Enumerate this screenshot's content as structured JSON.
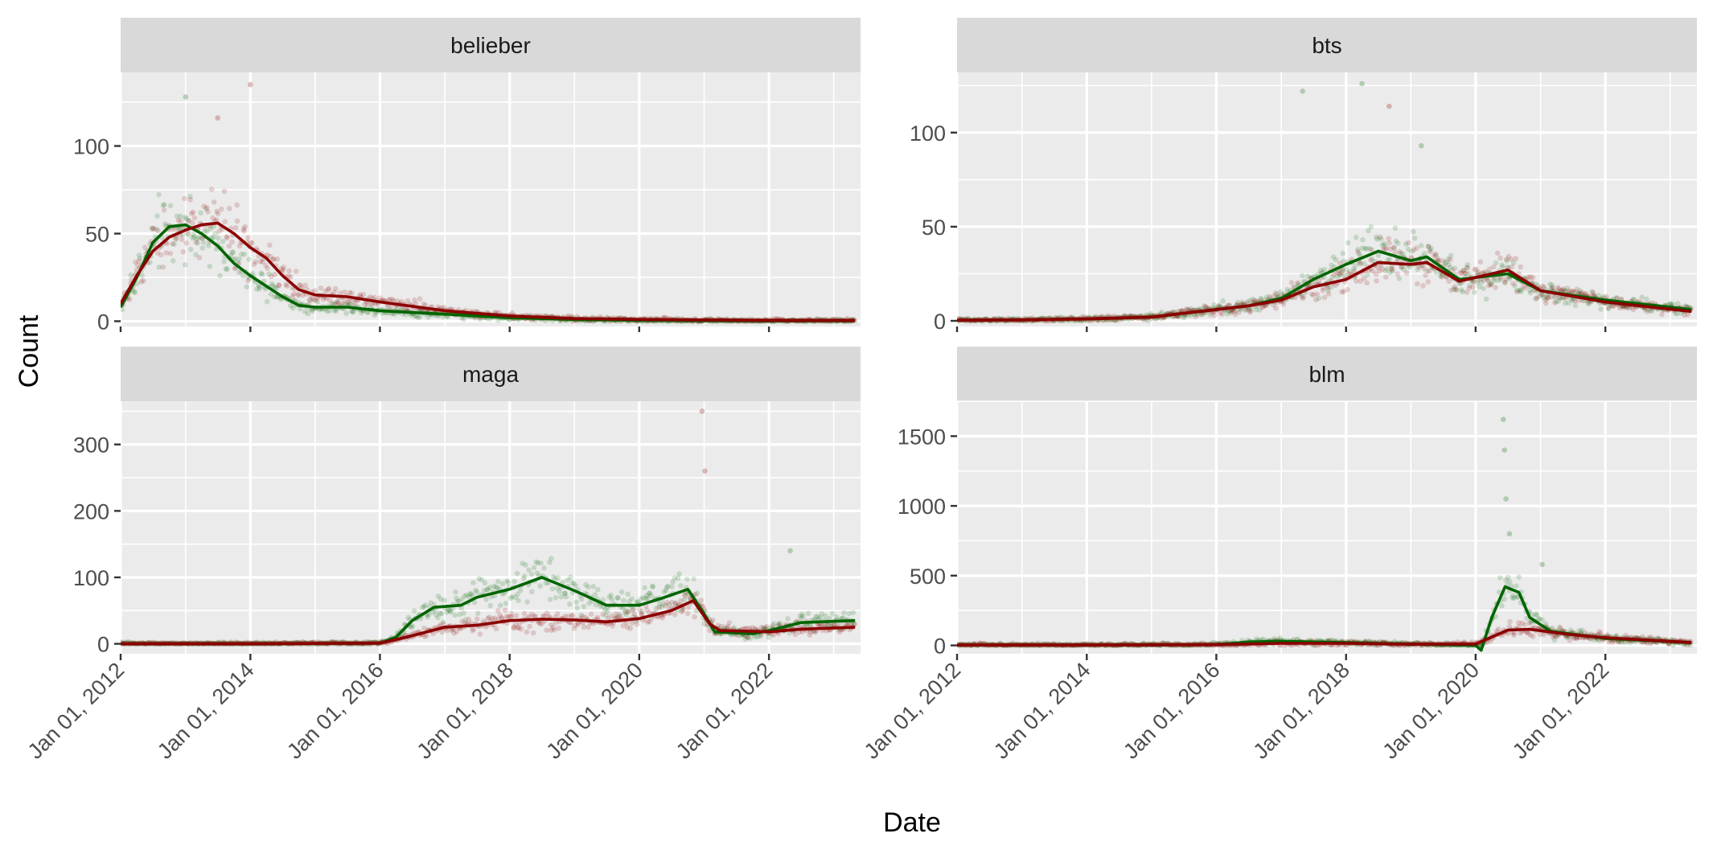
{
  "figure": {
    "xlabel": "Date",
    "ylabel": "Count",
    "panel_background": "#ebebeb",
    "strip_background": "#d9d9d9",
    "grid_color": "#ffffff",
    "series_colors": [
      "#006400",
      "#8b0000"
    ]
  },
  "chart_data": [
    {
      "type": "scatter",
      "title": "belieber",
      "x_ticks": [
        "2012-01-01",
        "2014-01-01",
        "2016-01-01",
        "2018-01-01",
        "2020-01-01",
        "2022-01-01"
      ],
      "x_tick_labels": [
        "Jan 01, 2012",
        "Jan 01, 2014",
        "Jan 01, 2016",
        "Jan 01, 2018",
        "Jan 01, 2020",
        "Jan 01, 2022"
      ],
      "xlim": [
        "2012-01-01",
        "2023-06-01"
      ],
      "y_ticks": [
        0,
        50,
        100
      ],
      "ylim": [
        -3,
        142
      ],
      "grid": true,
      "series": [
        {
          "color": "#006400",
          "smooth": [
            {
              "x": "2012-01-01",
              "y": 8
            },
            {
              "x": "2012-04-01",
              "y": 25
            },
            {
              "x": "2012-07-01",
              "y": 45
            },
            {
              "x": "2012-10-01",
              "y": 54
            },
            {
              "x": "2013-01-01",
              "y": 55
            },
            {
              "x": "2013-04-01",
              "y": 50
            },
            {
              "x": "2013-07-01",
              "y": 43
            },
            {
              "x": "2013-10-01",
              "y": 33
            },
            {
              "x": "2014-01-01",
              "y": 26
            },
            {
              "x": "2014-04-01",
              "y": 20
            },
            {
              "x": "2014-07-01",
              "y": 14
            },
            {
              "x": "2014-10-01",
              "y": 9
            },
            {
              "x": "2015-01-01",
              "y": 8
            },
            {
              "x": "2015-07-01",
              "y": 8
            },
            {
              "x": "2016-01-01",
              "y": 6
            },
            {
              "x": "2017-01-01",
              "y": 4
            },
            {
              "x": "2018-01-01",
              "y": 2
            },
            {
              "x": "2019-01-01",
              "y": 1
            },
            {
              "x": "2020-01-01",
              "y": 0.5
            },
            {
              "x": "2021-01-01",
              "y": 0.3
            },
            {
              "x": "2022-01-01",
              "y": 0.2
            },
            {
              "x": "2023-05-01",
              "y": 0.2
            }
          ]
        },
        {
          "color": "#8b0000",
          "smooth": [
            {
              "x": "2012-01-01",
              "y": 10
            },
            {
              "x": "2012-04-01",
              "y": 26
            },
            {
              "x": "2012-07-01",
              "y": 40
            },
            {
              "x": "2012-10-01",
              "y": 48
            },
            {
              "x": "2013-01-01",
              "y": 52
            },
            {
              "x": "2013-04-01",
              "y": 55
            },
            {
              "x": "2013-07-01",
              "y": 56
            },
            {
              "x": "2013-10-01",
              "y": 50
            },
            {
              "x": "2014-01-01",
              "y": 42
            },
            {
              "x": "2014-04-01",
              "y": 36
            },
            {
              "x": "2014-07-01",
              "y": 26
            },
            {
              "x": "2014-10-01",
              "y": 18
            },
            {
              "x": "2015-01-01",
              "y": 15
            },
            {
              "x": "2015-07-01",
              "y": 14
            },
            {
              "x": "2016-01-01",
              "y": 11
            },
            {
              "x": "2017-01-01",
              "y": 6
            },
            {
              "x": "2018-01-01",
              "y": 3
            },
            {
              "x": "2019-01-01",
              "y": 1.5
            },
            {
              "x": "2020-01-01",
              "y": 1
            },
            {
              "x": "2021-01-01",
              "y": 0.7
            },
            {
              "x": "2022-01-01",
              "y": 0.5
            },
            {
              "x": "2023-05-01",
              "y": 0.4
            }
          ]
        }
      ],
      "peaks": [
        {
          "x": "2014-01-01",
          "y": 135,
          "color": "#8b0000"
        },
        {
          "x": "2013-01-01",
          "y": 128,
          "color": "#006400"
        },
        {
          "x": "2013-07-01",
          "y": 116,
          "color": "#8b0000"
        }
      ]
    },
    {
      "type": "scatter",
      "title": "bts",
      "x_ticks": [
        "2012-01-01",
        "2014-01-01",
        "2016-01-01",
        "2018-01-01",
        "2020-01-01",
        "2022-01-01"
      ],
      "x_tick_labels": [
        "Jan 01, 2012",
        "Jan 01, 2014",
        "Jan 01, 2016",
        "Jan 01, 2018",
        "Jan 01, 2020",
        "Jan 01, 2022"
      ],
      "xlim": [
        "2012-01-01",
        "2023-06-01"
      ],
      "y_ticks": [
        0,
        50,
        100
      ],
      "ylim": [
        -3,
        132
      ],
      "grid": true,
      "series": [
        {
          "color": "#006400",
          "smooth": [
            {
              "x": "2012-01-01",
              "y": 0.3
            },
            {
              "x": "2013-01-01",
              "y": 0.5
            },
            {
              "x": "2014-01-01",
              "y": 1
            },
            {
              "x": "2015-01-01",
              "y": 2
            },
            {
              "x": "2015-07-01",
              "y": 4
            },
            {
              "x": "2016-01-01",
              "y": 6
            },
            {
              "x": "2016-07-01",
              "y": 8
            },
            {
              "x": "2017-01-01",
              "y": 12
            },
            {
              "x": "2017-07-01",
              "y": 22
            },
            {
              "x": "2018-01-01",
              "y": 30
            },
            {
              "x": "2018-07-01",
              "y": 37
            },
            {
              "x": "2019-01-01",
              "y": 32
            },
            {
              "x": "2019-04-01",
              "y": 34
            },
            {
              "x": "2019-10-01",
              "y": 22
            },
            {
              "x": "2020-07-01",
              "y": 25
            },
            {
              "x": "2021-01-01",
              "y": 16
            },
            {
              "x": "2022-01-01",
              "y": 11
            },
            {
              "x": "2023-05-01",
              "y": 6
            }
          ]
        },
        {
          "color": "#8b0000",
          "smooth": [
            {
              "x": "2012-01-01",
              "y": 0.3
            },
            {
              "x": "2013-01-01",
              "y": 0.5
            },
            {
              "x": "2014-01-01",
              "y": 1
            },
            {
              "x": "2015-01-01",
              "y": 2
            },
            {
              "x": "2015-07-01",
              "y": 4
            },
            {
              "x": "2016-01-01",
              "y": 6
            },
            {
              "x": "2016-07-01",
              "y": 8
            },
            {
              "x": "2017-01-01",
              "y": 11
            },
            {
              "x": "2017-07-01",
              "y": 18
            },
            {
              "x": "2018-01-01",
              "y": 22
            },
            {
              "x": "2018-07-01",
              "y": 31
            },
            {
              "x": "2019-01-01",
              "y": 30
            },
            {
              "x": "2019-04-01",
              "y": 31
            },
            {
              "x": "2019-10-01",
              "y": 21
            },
            {
              "x": "2020-07-01",
              "y": 27
            },
            {
              "x": "2021-01-01",
              "y": 16
            },
            {
              "x": "2022-01-01",
              "y": 10
            },
            {
              "x": "2023-05-01",
              "y": 5
            }
          ]
        }
      ],
      "peaks": [
        {
          "x": "2018-04-01",
          "y": 126,
          "color": "#006400"
        },
        {
          "x": "2017-05-01",
          "y": 122,
          "color": "#006400"
        },
        {
          "x": "2018-09-01",
          "y": 114,
          "color": "#8b0000"
        },
        {
          "x": "2019-03-01",
          "y": 93,
          "color": "#006400"
        }
      ]
    },
    {
      "type": "scatter",
      "title": "maga",
      "x_ticks": [
        "2012-01-01",
        "2014-01-01",
        "2016-01-01",
        "2018-01-01",
        "2020-01-01",
        "2022-01-01"
      ],
      "x_tick_labels": [
        "Jan 01, 2012",
        "Jan 01, 2014",
        "Jan 01, 2016",
        "Jan 01, 2018",
        "Jan 01, 2020",
        "Jan 01, 2022"
      ],
      "xlim": [
        "2012-01-01",
        "2023-06-01"
      ],
      "y_ticks": [
        0,
        100,
        200,
        300
      ],
      "ylim": [
        -15,
        365
      ],
      "grid": true,
      "series": [
        {
          "color": "#006400",
          "smooth": [
            {
              "x": "2012-01-01",
              "y": 0
            },
            {
              "x": "2014-01-01",
              "y": 0
            },
            {
              "x": "2016-01-01",
              "y": 1
            },
            {
              "x": "2016-04-01",
              "y": 10
            },
            {
              "x": "2016-07-01",
              "y": 35
            },
            {
              "x": "2016-11-01",
              "y": 55
            },
            {
              "x": "2017-04-01",
              "y": 58
            },
            {
              "x": "2017-07-01",
              "y": 70
            },
            {
              "x": "2018-01-01",
              "y": 82
            },
            {
              "x": "2018-07-01",
              "y": 100
            },
            {
              "x": "2019-01-01",
              "y": 80
            },
            {
              "x": "2019-07-01",
              "y": 58
            },
            {
              "x": "2020-01-01",
              "y": 58
            },
            {
              "x": "2020-05-01",
              "y": 68
            },
            {
              "x": "2020-10-01",
              "y": 82
            },
            {
              "x": "2021-01-01",
              "y": 45
            },
            {
              "x": "2021-03-01",
              "y": 18
            },
            {
              "x": "2021-10-01",
              "y": 15
            },
            {
              "x": "2022-01-01",
              "y": 20
            },
            {
              "x": "2022-07-01",
              "y": 32
            },
            {
              "x": "2023-05-01",
              "y": 35
            }
          ]
        },
        {
          "color": "#8b0000",
          "smooth": [
            {
              "x": "2012-01-01",
              "y": 0
            },
            {
              "x": "2014-01-01",
              "y": 0
            },
            {
              "x": "2016-01-01",
              "y": 1
            },
            {
              "x": "2016-06-01",
              "y": 10
            },
            {
              "x": "2017-01-01",
              "y": 25
            },
            {
              "x": "2017-07-01",
              "y": 28
            },
            {
              "x": "2018-01-01",
              "y": 35
            },
            {
              "x": "2018-07-01",
              "y": 37
            },
            {
              "x": "2019-01-01",
              "y": 36
            },
            {
              "x": "2019-07-01",
              "y": 33
            },
            {
              "x": "2020-01-01",
              "y": 38
            },
            {
              "x": "2020-07-01",
              "y": 50
            },
            {
              "x": "2020-11-01",
              "y": 65
            },
            {
              "x": "2021-02-01",
              "y": 30
            },
            {
              "x": "2021-04-01",
              "y": 20
            },
            {
              "x": "2022-01-01",
              "y": 18
            },
            {
              "x": "2022-07-01",
              "y": 22
            },
            {
              "x": "2023-05-01",
              "y": 25
            }
          ]
        }
      ],
      "peaks": [
        {
          "x": "2020-12-20",
          "y": 350,
          "color": "#8b0000"
        },
        {
          "x": "2021-01-05",
          "y": 260,
          "color": "#8b0000"
        },
        {
          "x": "2022-05-01",
          "y": 140,
          "color": "#006400"
        }
      ]
    },
    {
      "type": "scatter",
      "title": "blm",
      "x_ticks": [
        "2012-01-01",
        "2014-01-01",
        "2016-01-01",
        "2018-01-01",
        "2020-01-01",
        "2022-01-01"
      ],
      "x_tick_labels": [
        "Jan 01, 2012",
        "Jan 01, 2014",
        "Jan 01, 2016",
        "Jan 01, 2018",
        "Jan 01, 2020",
        "Jan 01, 2022"
      ],
      "xlim": [
        "2012-01-01",
        "2023-06-01"
      ],
      "y_ticks": [
        0,
        500,
        1000,
        1500
      ],
      "ylim": [
        -60,
        1750
      ],
      "grid": true,
      "series": [
        {
          "color": "#006400",
          "smooth": [
            {
              "x": "2012-01-01",
              "y": 2
            },
            {
              "x": "2014-01-01",
              "y": 2
            },
            {
              "x": "2016-01-01",
              "y": 5
            },
            {
              "x": "2016-07-01",
              "y": 25
            },
            {
              "x": "2017-01-01",
              "y": 30
            },
            {
              "x": "2018-01-01",
              "y": 20
            },
            {
              "x": "2019-01-01",
              "y": 10
            },
            {
              "x": "2020-01-01",
              "y": 0
            },
            {
              "x": "2020-02-01",
              "y": -35
            },
            {
              "x": "2020-04-01",
              "y": 200
            },
            {
              "x": "2020-06-15",
              "y": 420
            },
            {
              "x": "2020-09-01",
              "y": 380
            },
            {
              "x": "2020-11-01",
              "y": 200
            },
            {
              "x": "2021-03-01",
              "y": 100
            },
            {
              "x": "2022-01-01",
              "y": 50
            },
            {
              "x": "2023-05-01",
              "y": 20
            }
          ]
        },
        {
          "color": "#8b0000",
          "smooth": [
            {
              "x": "2012-01-01",
              "y": 2
            },
            {
              "x": "2014-01-01",
              "y": 2
            },
            {
              "x": "2016-01-01",
              "y": 5
            },
            {
              "x": "2017-01-01",
              "y": 15
            },
            {
              "x": "2018-01-01",
              "y": 15
            },
            {
              "x": "2019-01-01",
              "y": 8
            },
            {
              "x": "2020-01-01",
              "y": 10
            },
            {
              "x": "2020-04-01",
              "y": 60
            },
            {
              "x": "2020-07-01",
              "y": 110
            },
            {
              "x": "2020-11-01",
              "y": 115
            },
            {
              "x": "2021-06-01",
              "y": 80
            },
            {
              "x": "2022-01-01",
              "y": 55
            },
            {
              "x": "2023-05-01",
              "y": 20
            }
          ]
        }
      ],
      "peaks": [
        {
          "x": "2020-06-05",
          "y": 1620,
          "color": "#006400"
        },
        {
          "x": "2020-06-12",
          "y": 1400,
          "color": "#006400"
        },
        {
          "x": "2020-06-20",
          "y": 1050,
          "color": "#006400"
        },
        {
          "x": "2020-07-10",
          "y": 800,
          "color": "#006400"
        },
        {
          "x": "2021-01-10",
          "y": 580,
          "color": "#006400"
        }
      ]
    }
  ]
}
